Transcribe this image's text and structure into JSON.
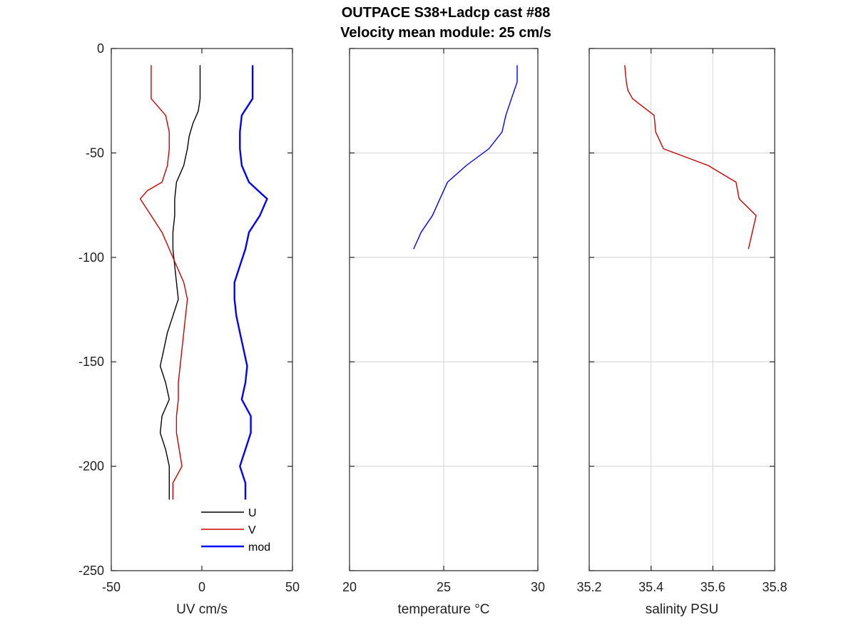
{
  "figure": {
    "title_line1": "OUTPACE S38+Ladcp cast #88",
    "title_line2": "Velocity mean module:  25 cm/s"
  },
  "chart_data": [
    {
      "type": "line",
      "xlabel": "UV cm/s",
      "ylabel": "",
      "xlim": [
        -50,
        50
      ],
      "ylim": [
        -250,
        0
      ],
      "xticks": [
        -50,
        0,
        50
      ],
      "yticks": [
        0,
        -50,
        -100,
        -150,
        -200,
        -250
      ],
      "xtick_labels": [
        "-50",
        "0",
        "50"
      ],
      "ytick_labels": [
        "0",
        "-50",
        "-100",
        "-150",
        "-200",
        "-250"
      ],
      "grid": false,
      "legend_position": "bottom-right",
      "series": [
        {
          "name": "U",
          "color": "#000000",
          "x": [
            -1,
            -1,
            -2,
            -5,
            -7,
            -8,
            -10,
            -14,
            -15,
            -15,
            -16,
            -16,
            -14,
            -13,
            -16,
            -19,
            -21,
            -23,
            -20,
            -18,
            -22,
            -23,
            -20,
            -18,
            -18,
            -18
          ],
          "y": [
            -8,
            -24,
            -30,
            -36,
            -42,
            -48,
            -56,
            -64,
            -72,
            -80,
            -88,
            -96,
            -112,
            -120,
            -128,
            -136,
            -144,
            -152,
            -160,
            -168,
            -176,
            -184,
            -192,
            -200,
            -208,
            -216
          ]
        },
        {
          "name": "V",
          "color": "#cc0000",
          "x": [
            -28,
            -28,
            -20,
            -18,
            -18,
            -19,
            -22,
            -30,
            -34,
            -28,
            -22,
            -18,
            -14,
            -10,
            -8,
            -9,
            -10,
            -11,
            -12,
            -13,
            -13,
            -14,
            -14,
            -11,
            -16,
            -16
          ],
          "y": [
            -8,
            -24,
            -32,
            -40,
            -48,
            -56,
            -64,
            -68,
            -72,
            -80,
            -88,
            -96,
            -104,
            -112,
            -120,
            -128,
            -136,
            -144,
            -152,
            -160,
            -168,
            -176,
            -184,
            -200,
            -208,
            -216
          ]
        },
        {
          "name": "mod",
          "color": "#0000ff",
          "x": [
            28,
            28,
            22,
            21,
            21,
            22,
            26,
            31,
            36,
            32,
            26,
            24,
            21,
            18,
            18,
            19,
            21,
            23,
            25,
            24,
            22,
            27,
            27,
            21,
            24,
            24
          ],
          "y": [
            -8,
            -24,
            -32,
            -40,
            -48,
            -56,
            -64,
            -68,
            -72,
            -80,
            -88,
            -96,
            -104,
            -112,
            -120,
            -128,
            -136,
            -144,
            -152,
            -160,
            -168,
            -176,
            -184,
            -200,
            -208,
            -216
          ]
        }
      ]
    },
    {
      "type": "line",
      "xlabel": "temperature °C",
      "ylabel": "",
      "xlim": [
        20,
        30
      ],
      "ylim": [
        -250,
        0
      ],
      "xticks": [
        20,
        25,
        30
      ],
      "yticks": [
        0,
        -50,
        -100,
        -150,
        -200,
        -250
      ],
      "xtick_labels": [
        "20",
        "25",
        "30"
      ],
      "grid": true,
      "series": [
        {
          "color": "#0000ff",
          "x": [
            28.9,
            28.9,
            28.6,
            28.3,
            28.1,
            27.4,
            26.2,
            25.2,
            24.8,
            24.4,
            23.8,
            23.4
          ],
          "y": [
            -8,
            -16,
            -24,
            -32,
            -40,
            -48,
            -56,
            -64,
            -72,
            -80,
            -88,
            -96
          ]
        }
      ]
    },
    {
      "type": "line",
      "xlabel": "salinity PSU",
      "ylabel": "",
      "xlim": [
        35.2,
        35.8
      ],
      "ylim": [
        -250,
        0
      ],
      "xticks": [
        35.2,
        35.4,
        35.6,
        35.8
      ],
      "yticks": [
        0,
        -50,
        -100,
        -150,
        -200,
        -250
      ],
      "xtick_labels": [
        "35.2",
        "35.4",
        "35.6",
        "35.8"
      ],
      "grid": true,
      "series": [
        {
          "color": "#cc0000",
          "x": [
            35.315,
            35.32,
            35.325,
            35.34,
            35.41,
            35.415,
            35.44,
            35.585,
            35.675,
            35.685,
            35.74,
            35.715
          ],
          "y": [
            -8,
            -16,
            -20,
            -24,
            -32,
            -40,
            -48,
            -56,
            -64,
            -72,
            -80,
            -96
          ]
        }
      ]
    }
  ]
}
